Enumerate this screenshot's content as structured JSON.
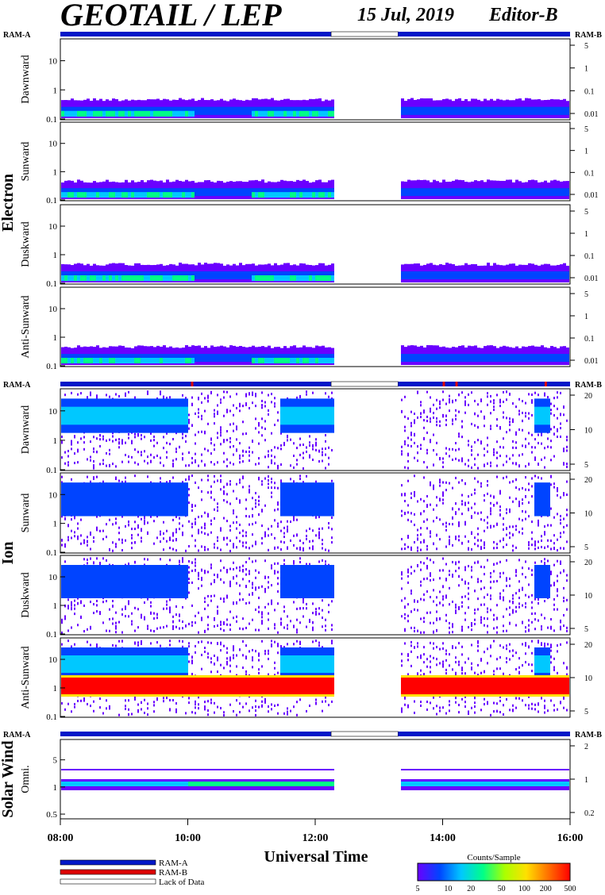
{
  "header": {
    "title": "GEOTAIL / LEP",
    "date": "15 Jul, 2019",
    "editor": "Editor-B"
  },
  "ram_labels": {
    "a": "RAM-A",
    "b": "RAM-B"
  },
  "groups": [
    {
      "label": "Electron"
    },
    {
      "label": "Ion"
    },
    {
      "label": "Solar Wind"
    }
  ],
  "panels": [
    {
      "label": "Dawnward",
      "group": "Electron",
      "left_ticks": [
        "10",
        "1",
        "0.1"
      ],
      "right_ticks": [
        "5",
        "1",
        "0.1",
        "0.01"
      ]
    },
    {
      "label": "Sunward",
      "group": "Electron",
      "left_ticks": [
        "10",
        "1",
        "0.1"
      ],
      "right_ticks": [
        "5",
        "1",
        "0.1",
        "0.01"
      ]
    },
    {
      "label": "Duskward",
      "group": "Electron",
      "left_ticks": [
        "10",
        "1",
        "0.1"
      ],
      "right_ticks": [
        "5",
        "1",
        "0.1",
        "0.01"
      ]
    },
    {
      "label": "Anti-Sunward",
      "group": "Electron",
      "left_ticks": [
        "10",
        "1",
        "0.1"
      ],
      "right_ticks": [
        "5",
        "1",
        "0.1",
        "0.01"
      ]
    },
    {
      "label": "Dawnward",
      "group": "Ion",
      "left_ticks": [
        "10",
        "1",
        "0.1"
      ],
      "right_ticks": [
        "20",
        "10",
        "5"
      ]
    },
    {
      "label": "Sunward",
      "group": "Ion",
      "left_ticks": [
        "10",
        "1",
        "0.1"
      ],
      "right_ticks": [
        "20",
        "10",
        "5"
      ]
    },
    {
      "label": "Duskward",
      "group": "Ion",
      "left_ticks": [
        "10",
        "1",
        "0.1"
      ],
      "right_ticks": [
        "20",
        "10",
        "5"
      ]
    },
    {
      "label": "Anti-Sunward",
      "group": "Ion",
      "left_ticks": [
        "10",
        "1",
        "0.1"
      ],
      "right_ticks": [
        "20",
        "10",
        "5"
      ]
    },
    {
      "label": "Omni.",
      "group": "Solar Wind",
      "left_ticks": [
        "5",
        "1",
        "0.5"
      ],
      "right_ticks": [
        "2",
        "1",
        "0.2"
      ]
    }
  ],
  "chart_data": {
    "type": "heatmap",
    "title": "GEOTAIL / LEP",
    "xlabel": "Universal Time",
    "x_ticks": [
      "08:00",
      "10:00",
      "12:00",
      "14:00",
      "16:00"
    ],
    "x_range_hours": [
      8,
      16
    ],
    "data_gap_hours": [
      12.25,
      13.3
    ],
    "colorbar": {
      "label": "Counts/Sample",
      "ticks": [
        "5",
        "10",
        "20",
        "50",
        "100",
        "200",
        "500"
      ],
      "colors": [
        "#6a00ff",
        "#0044ff",
        "#00c8ff",
        "#00ff88",
        "#aaff00",
        "#ffe000",
        "#ff7000",
        "#ff0000"
      ]
    },
    "legend": [
      {
        "name": "RAM-A",
        "color": "#0018c8"
      },
      {
        "name": "RAM-B",
        "color": "#dd0000"
      },
      {
        "name": "Lack of Data",
        "color": "#ffffff"
      }
    ],
    "legend_position": "bottom-left"
  }
}
